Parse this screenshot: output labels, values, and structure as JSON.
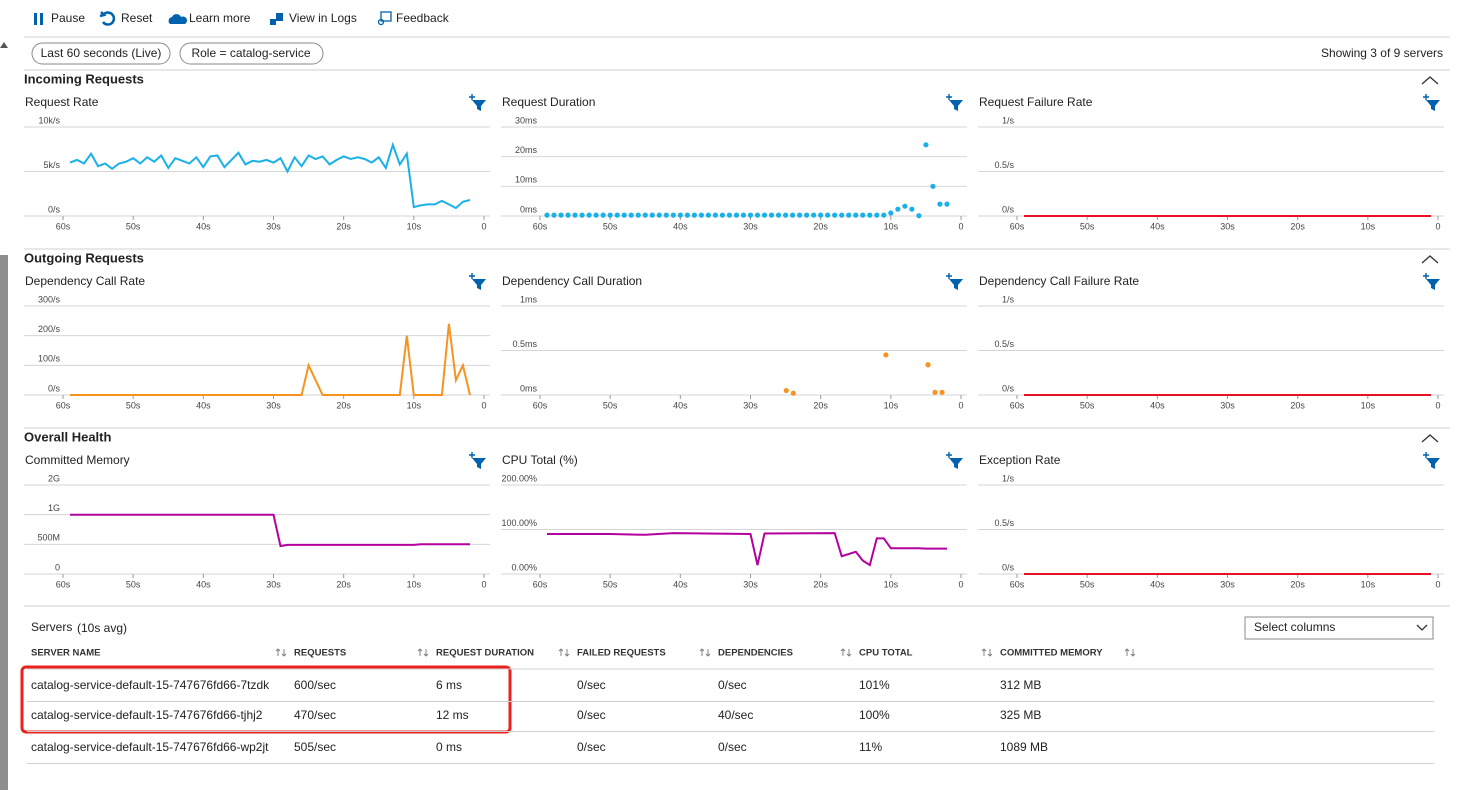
{
  "toolbar": [
    "Pause",
    "Reset",
    "Learn more",
    "View in Logs",
    "Feedback"
  ],
  "filters": {
    "time": "Last 60 seconds (Live)",
    "role": "Role = catalog-service",
    "showing": "Showing 3 of 9 servers"
  },
  "sections": [
    "Incoming Requests",
    "Outgoing Requests",
    "Overall Health"
  ],
  "chart_data": [
    {
      "type": "line",
      "title": "Request Rate",
      "color": "#1ab0e8",
      "x": [
        59,
        58,
        57,
        56,
        55,
        54,
        53,
        52,
        51,
        50,
        49,
        48,
        47,
        46,
        45,
        44,
        43,
        42,
        41,
        40,
        39,
        38,
        37,
        36,
        35,
        34,
        33,
        32,
        31,
        30,
        29,
        28,
        27,
        26,
        25,
        24,
        23,
        22,
        21,
        20,
        19,
        18,
        17,
        16,
        15,
        14,
        13,
        12,
        11,
        10,
        9,
        8,
        7,
        6,
        5,
        4,
        3,
        2
      ],
      "values": [
        6000,
        6300,
        5900,
        7000,
        5600,
        5900,
        5300,
        5900,
        6100,
        6500,
        5900,
        6600,
        6100,
        6800,
        5400,
        6500,
        6200,
        5900,
        6600,
        5500,
        6700,
        6800,
        5500,
        6300,
        7100,
        5800,
        6200,
        6100,
        6300,
        6000,
        6500,
        5000,
        6600,
        5600,
        6800,
        6400,
        6700,
        5800,
        6300,
        6700,
        6400,
        6600,
        6400,
        6000,
        6600,
        5400,
        8000,
        5800,
        7000,
        1000,
        1200,
        1300,
        1300,
        1700,
        1300,
        900,
        1600,
        1800
      ],
      "xlim": [
        60,
        0
      ],
      "xticks": [
        {
          "value": 60,
          "label": "60s"
        },
        {
          "value": 50,
          "label": "50s"
        },
        {
          "value": 40,
          "label": "40s"
        },
        {
          "value": 30,
          "label": "30s"
        },
        {
          "value": 20,
          "label": "20s"
        },
        {
          "value": 10,
          "label": "10s"
        },
        0
      ],
      "ylim": [
        0,
        10000
      ],
      "yticks": [
        {
          "value": 0,
          "label": "0/s"
        },
        {
          "value": 5000,
          "label": "5k/s"
        },
        {
          "value": 10000,
          "label": "10k/s"
        }
      ]
    },
    {
      "type": "scatter",
      "title": "Request Duration",
      "color": "#1ab0e8",
      "x": [
        59,
        58,
        57,
        56,
        55,
        54,
        53,
        52,
        51,
        50,
        49,
        48,
        47,
        46,
        45,
        44,
        43,
        42,
        41,
        40,
        39,
        38,
        37,
        36,
        35,
        34,
        33,
        32,
        31,
        30,
        29,
        28,
        27,
        26,
        25,
        24,
        23,
        22,
        21,
        20,
        19,
        18,
        17,
        16,
        15,
        14,
        13,
        12,
        11,
        10,
        9,
        8,
        7,
        6,
        5,
        4,
        3,
        2
      ],
      "values": [
        0.3,
        0.3,
        0.3,
        0.3,
        0.3,
        0.3,
        0.3,
        0.3,
        0.3,
        0.3,
        0.3,
        0.3,
        0.3,
        0.3,
        0.3,
        0.3,
        0.3,
        0.3,
        0.3,
        0.3,
        0.3,
        0.3,
        0.3,
        0.3,
        0.3,
        0.3,
        0.3,
        0.3,
        0.3,
        0.3,
        0.3,
        0.3,
        0.3,
        0.3,
        0.3,
        0.3,
        0.3,
        0.3,
        0.3,
        0.3,
        0.3,
        0.3,
        0.3,
        0.3,
        0.3,
        0.3,
        0.3,
        0.3,
        0.3,
        1,
        2.3,
        3.3,
        2.3,
        0.1,
        24,
        10,
        4,
        4
      ],
      "xlim": [
        60,
        0
      ],
      "xticks": [
        {
          "value": 60,
          "label": "60s"
        },
        {
          "value": 50,
          "label": "50s"
        },
        {
          "value": 40,
          "label": "40s"
        },
        {
          "value": 30,
          "label": "30s"
        },
        {
          "value": 20,
          "label": "20s"
        },
        {
          "value": 10,
          "label": "10s"
        },
        0
      ],
      "ylim": [
        0,
        30
      ],
      "yticks": [
        {
          "value": 0,
          "label": "0ms"
        },
        {
          "value": 10,
          "label": "10ms"
        },
        {
          "value": 20,
          "label": "20ms"
        },
        {
          "value": 30,
          "label": "30ms"
        }
      ]
    },
    {
      "type": "line",
      "title": "Request Failure Rate",
      "color": "#e81123",
      "x": [
        59,
        1
      ],
      "values": [
        0,
        0
      ],
      "xlim": [
        60,
        0
      ],
      "xticks": [
        {
          "value": 60,
          "label": "60s"
        },
        {
          "value": 50,
          "label": "50s"
        },
        {
          "value": 40,
          "label": "40s"
        },
        {
          "value": 30,
          "label": "30s"
        },
        {
          "value": 20,
          "label": "20s"
        },
        {
          "value": 10,
          "label": "10s"
        },
        0
      ],
      "ylim": [
        0,
        1
      ],
      "yticks": [
        {
          "value": 0,
          "label": "0/s"
        },
        {
          "value": 0.5,
          "label": "0.5/s"
        },
        {
          "value": 1,
          "label": "1/s"
        }
      ]
    },
    {
      "type": "line",
      "title": "Dependency Call Rate",
      "color": "#f7931e",
      "x": [
        59,
        26,
        25,
        23,
        12,
        11,
        10,
        9,
        6,
        5,
        4,
        3,
        2
      ],
      "values": [
        0,
        0,
        100,
        0,
        0,
        200,
        0,
        0,
        0,
        240,
        50,
        100,
        0
      ],
      "xlim": [
        60,
        0
      ],
      "xticks": [
        {
          "value": 60,
          "label": "60s"
        },
        {
          "value": 50,
          "label": "50s"
        },
        {
          "value": 40,
          "label": "40s"
        },
        {
          "value": 30,
          "label": "30s"
        },
        {
          "value": 20,
          "label": "20s"
        },
        {
          "value": 10,
          "label": "10s"
        },
        0
      ],
      "ylim": [
        0,
        300
      ],
      "yticks": [
        {
          "value": 0,
          "label": "0/s"
        },
        {
          "value": 100,
          "label": "100/s"
        },
        {
          "value": 200,
          "label": "200/s"
        },
        {
          "value": 300,
          "label": "300/s"
        }
      ]
    },
    {
      "type": "scatter",
      "title": "Dependency Call Duration",
      "color": "#f7931e",
      "x": [
        24.9,
        23.9,
        10.7,
        4.7,
        3.7,
        2.7
      ],
      "values": [
        0.05,
        0.02,
        0.45,
        0.34,
        0.03,
        0.03
      ],
      "xlim": [
        60,
        0
      ],
      "xticks": [
        {
          "value": 60,
          "label": "60s"
        },
        {
          "value": 50,
          "label": "50s"
        },
        {
          "value": 40,
          "label": "40s"
        },
        {
          "value": 30,
          "label": "30s"
        },
        {
          "value": 20,
          "label": "20s"
        },
        {
          "value": 10,
          "label": "10s"
        },
        0
      ],
      "ylim": [
        0,
        1
      ],
      "yticks": [
        {
          "value": 0,
          "label": "0ms"
        },
        {
          "value": 0.5,
          "label": "0.5ms"
        },
        {
          "value": 1,
          "label": "1ms"
        }
      ]
    },
    {
      "type": "line",
      "title": "Dependency Call Failure Rate",
      "color": "#e81123",
      "x": [
        59,
        1
      ],
      "values": [
        0,
        0
      ],
      "xlim": [
        60,
        0
      ],
      "xticks": [
        {
          "value": 60,
          "label": "60s"
        },
        {
          "value": 50,
          "label": "50s"
        },
        {
          "value": 40,
          "label": "40s"
        },
        {
          "value": 30,
          "label": "30s"
        },
        {
          "value": 20,
          "label": "20s"
        },
        {
          "value": 10,
          "label": "10s"
        },
        0
      ],
      "ylim": [
        0,
        1
      ],
      "yticks": [
        {
          "value": 0,
          "label": "0/s"
        },
        {
          "value": 0.5,
          "label": "0.5/s"
        },
        {
          "value": 1,
          "label": "1/s"
        }
      ]
    },
    {
      "type": "line",
      "title": "Committed Memory",
      "color": "#b4009e",
      "x": [
        59,
        30,
        29,
        28,
        10,
        9,
        2
      ],
      "values": [
        1000,
        1000,
        470,
        490,
        490,
        500,
        500
      ],
      "xlim": [
        60,
        0
      ],
      "xticks": [
        {
          "value": 60,
          "label": "60s"
        },
        {
          "value": 50,
          "label": "50s"
        },
        {
          "value": 40,
          "label": "40s"
        },
        {
          "value": 30,
          "label": "30s"
        },
        {
          "value": 20,
          "label": "20s"
        },
        {
          "value": 10,
          "label": "10s"
        },
        0
      ],
      "ylim": [
        0,
        2000
      ],
      "yticks": [
        0,
        {
          "value": 500,
          "label": "500M"
        },
        {
          "value": 1000,
          "label": "1G"
        },
        {
          "value": 2000,
          "label": "2G"
        }
      ]
    },
    {
      "type": "line",
      "title": "CPU Total (%)",
      "color": "#b4009e",
      "x": [
        59,
        50,
        45,
        41,
        30,
        29,
        28,
        18,
        17,
        15,
        14,
        13,
        12,
        11,
        10,
        9,
        6,
        5,
        2
      ],
      "values": [
        90,
        90,
        88,
        92,
        90,
        20,
        91,
        92,
        40,
        50,
        30,
        20,
        80,
        80,
        58,
        58,
        58,
        57,
        57
      ],
      "xlim": [
        60,
        0
      ],
      "xticks": [
        {
          "value": 60,
          "label": "60s"
        },
        {
          "value": 50,
          "label": "50s"
        },
        {
          "value": 40,
          "label": "40s"
        },
        {
          "value": 30,
          "label": "30s"
        },
        {
          "value": 20,
          "label": "20s"
        },
        {
          "value": 10,
          "label": "10s"
        },
        0
      ],
      "ylim": [
        0,
        200
      ],
      "yticks": [
        {
          "value": 0,
          "label": "0.00%"
        },
        {
          "value": 100,
          "label": "100.00%"
        },
        {
          "value": 200,
          "label": "200.00%"
        }
      ]
    },
    {
      "type": "line",
      "title": "Exception Rate",
      "color": "#e81123",
      "x": [
        59,
        1
      ],
      "values": [
        0,
        0
      ],
      "xlim": [
        60,
        0
      ],
      "xticks": [
        {
          "value": 60,
          "label": "60s"
        },
        {
          "value": 50,
          "label": "50s"
        },
        {
          "value": 40,
          "label": "40s"
        },
        {
          "value": 30,
          "label": "30s"
        },
        {
          "value": 20,
          "label": "20s"
        },
        {
          "value": 10,
          "label": "10s"
        },
        0
      ],
      "ylim": [
        0,
        1
      ],
      "yticks": [
        {
          "value": 0,
          "label": "0/s"
        },
        {
          "value": 0.5,
          "label": "0.5/s"
        },
        {
          "value": 1,
          "label": "1/s"
        }
      ]
    }
  ],
  "table": {
    "title": "Servers",
    "subtitle": "(10s avg)",
    "select": "Select columns",
    "columns": [
      "SERVER NAME",
      "REQUESTS",
      "REQUEST DURATION",
      "FAILED REQUESTS",
      "DEPENDENCIES",
      "CPU TOTAL",
      "COMMITTED MEMORY"
    ],
    "rows": [
      [
        "catalog-service-default-15-747676fd66-7tzdk",
        "600/sec",
        "6 ms",
        "0/sec",
        "0/sec",
        "101%",
        "312 MB"
      ],
      [
        "catalog-service-default-15-747676fd66-tjhj2",
        "470/sec",
        "12 ms",
        "0/sec",
        "40/sec",
        "100%",
        "325 MB"
      ],
      [
        "catalog-service-default-15-747676fd66-wp2jt",
        "505/sec",
        "0 ms",
        "0/sec",
        "0/sec",
        "11%",
        "1089 MB"
      ]
    ]
  }
}
